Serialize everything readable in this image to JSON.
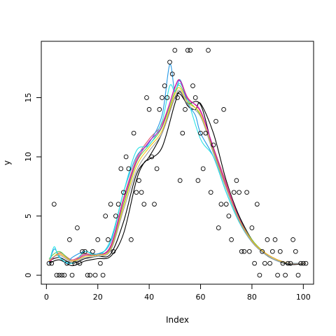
{
  "chart_data": {
    "type": "scatter",
    "title": "",
    "xlabel": "Index",
    "ylabel": "y",
    "xlim": [
      -2,
      104
    ],
    "ylim": [
      -0.76,
      19.76
    ],
    "x_ticks": [
      0,
      20,
      40,
      60,
      80,
      100
    ],
    "y_ticks": [
      0,
      5,
      10,
      15
    ],
    "grid": false,
    "points": [
      [
        1,
        1
      ],
      [
        2,
        1
      ],
      [
        3,
        6
      ],
      [
        4,
        0
      ],
      [
        5,
        0
      ],
      [
        6,
        0
      ],
      [
        7,
        0
      ],
      [
        8,
        1
      ],
      [
        9,
        3
      ],
      [
        10,
        0
      ],
      [
        11,
        1
      ],
      [
        12,
        4
      ],
      [
        13,
        1
      ],
      [
        14,
        2
      ],
      [
        15,
        2
      ],
      [
        16,
        0
      ],
      [
        17,
        0
      ],
      [
        18,
        2
      ],
      [
        19,
        0
      ],
      [
        20,
        3
      ],
      [
        21,
        1
      ],
      [
        22,
        0
      ],
      [
        23,
        5
      ],
      [
        24,
        3
      ],
      [
        25,
        6
      ],
      [
        26,
        2
      ],
      [
        27,
        5
      ],
      [
        28,
        6
      ],
      [
        29,
        9
      ],
      [
        30,
        7
      ],
      [
        31,
        10
      ],
      [
        32,
        9
      ],
      [
        33,
        3
      ],
      [
        34,
        12
      ],
      [
        35,
        7
      ],
      [
        36,
        8
      ],
      [
        37,
        7
      ],
      [
        38,
        6
      ],
      [
        39,
        15
      ],
      [
        40,
        14
      ],
      [
        41,
        10
      ],
      [
        42,
        6
      ],
      [
        43,
        9
      ],
      [
        44,
        14
      ],
      [
        45,
        15
      ],
      [
        46,
        16
      ],
      [
        47,
        15
      ],
      [
        48,
        18
      ],
      [
        49,
        17
      ],
      [
        50,
        19
      ],
      [
        51,
        15
      ],
      [
        52,
        8
      ],
      [
        53,
        12
      ],
      [
        54,
        14
      ],
      [
        55,
        19
      ],
      [
        56,
        19
      ],
      [
        57,
        16
      ],
      [
        58,
        15
      ],
      [
        59,
        8
      ],
      [
        60,
        12
      ],
      [
        61,
        9
      ],
      [
        62,
        12
      ],
      [
        63,
        19
      ],
      [
        64,
        7
      ],
      [
        65,
        11
      ],
      [
        66,
        13
      ],
      [
        67,
        4
      ],
      [
        68,
        6
      ],
      [
        69,
        14
      ],
      [
        70,
        6
      ],
      [
        71,
        5
      ],
      [
        72,
        3
      ],
      [
        73,
        7
      ],
      [
        74,
        8
      ],
      [
        75,
        7
      ],
      [
        76,
        2
      ],
      [
        77,
        2
      ],
      [
        78,
        7
      ],
      [
        79,
        2
      ],
      [
        80,
        4
      ],
      [
        81,
        1
      ],
      [
        82,
        6
      ],
      [
        83,
        0
      ],
      [
        84,
        2
      ],
      [
        85,
        1
      ],
      [
        86,
        3
      ],
      [
        87,
        1
      ],
      [
        88,
        2
      ],
      [
        89,
        3
      ],
      [
        90,
        0
      ],
      [
        91,
        2
      ],
      [
        92,
        1
      ],
      [
        93,
        0
      ],
      [
        94,
        1
      ],
      [
        95,
        1
      ],
      [
        96,
        3
      ],
      [
        97,
        2
      ],
      [
        98,
        0
      ],
      [
        99,
        1
      ],
      [
        100,
        1
      ],
      [
        101,
        1
      ]
    ],
    "series": [
      {
        "color": "#000000",
        "x": [
          1,
          5,
          10,
          15,
          20,
          25,
          30,
          35,
          40,
          45,
          50,
          52,
          55,
          60,
          65,
          70,
          75,
          80,
          85,
          90,
          95,
          101
        ],
        "y": [
          1.2,
          1.5,
          1.0,
          1.4,
          1.6,
          1.8,
          4.5,
          8.5,
          10.0,
          12.0,
          15.0,
          15.3,
          14.5,
          14.4,
          10.5,
          7.5,
          5.0,
          3.0,
          1.8,
          1.2,
          1.0,
          1.0
        ]
      },
      {
        "color": "#000000",
        "x": [
          1,
          5,
          10,
          15,
          20,
          25,
          30,
          35,
          38,
          40,
          45,
          50,
          52,
          55,
          58,
          60,
          65,
          70,
          75,
          80,
          85,
          90,
          95,
          101
        ],
        "y": [
          1.0,
          1.3,
          0.8,
          1.2,
          1.4,
          1.6,
          3.5,
          8.0,
          9.5,
          9.8,
          10.8,
          14.5,
          15.5,
          14.3,
          14.0,
          14.5,
          12.0,
          8.0,
          5.0,
          3.0,
          1.8,
          1.2,
          0.9,
          1.0
        ]
      },
      {
        "color": "#DF536B",
        "x": [
          1,
          5,
          10,
          15,
          20,
          25,
          30,
          35,
          40,
          45,
          50,
          52,
          55,
          60,
          65,
          70,
          75,
          80,
          85,
          90,
          95,
          101
        ],
        "y": [
          1.0,
          1.9,
          1.3,
          1.8,
          1.7,
          2.5,
          6.5,
          9.8,
          11.5,
          12.8,
          15.8,
          16.5,
          15.0,
          13.8,
          10.8,
          7.8,
          4.8,
          3.0,
          1.9,
          1.3,
          1.0,
          1.0
        ]
      },
      {
        "color": "#61D04F",
        "x": [
          1,
          5,
          10,
          15,
          20,
          25,
          30,
          35,
          40,
          45,
          50,
          52,
          55,
          60,
          65,
          70,
          75,
          80,
          85,
          90,
          95,
          101
        ],
        "y": [
          1.4,
          2.0,
          1.2,
          1.7,
          1.8,
          2.3,
          6.0,
          9.5,
          11.0,
          12.5,
          15.5,
          16.0,
          14.8,
          13.5,
          10.5,
          7.5,
          4.8,
          3.0,
          1.9,
          1.3,
          1.0,
          1.0
        ]
      },
      {
        "color": "#2297E6",
        "x": [
          1,
          3,
          5,
          8,
          10,
          15,
          20,
          25,
          30,
          35,
          40,
          45,
          48,
          50,
          52,
          55,
          58,
          60,
          65,
          70,
          75,
          80,
          85,
          90,
          95,
          101
        ],
        "y": [
          1.0,
          2.2,
          1.6,
          1.0,
          1.5,
          2.0,
          1.8,
          2.8,
          7.0,
          10.0,
          11.2,
          13.5,
          17.8,
          15.5,
          16.5,
          14.5,
          13.5,
          12.0,
          10.0,
          7.0,
          4.5,
          2.8,
          1.8,
          1.2,
          1.0,
          1.0
        ]
      },
      {
        "color": "#28E2E5",
        "x": [
          1,
          3,
          5,
          10,
          15,
          20,
          25,
          30,
          35,
          40,
          45,
          48,
          50,
          52,
          55,
          60,
          65,
          70,
          75,
          80,
          85,
          90,
          95,
          101
        ],
        "y": [
          1.0,
          2.4,
          1.5,
          1.0,
          2.0,
          1.6,
          3.0,
          7.0,
          10.5,
          11.0,
          13.0,
          16.0,
          15.5,
          16.2,
          14.8,
          11.5,
          10.0,
          7.0,
          4.5,
          2.8,
          1.8,
          1.2,
          1.0,
          1.0
        ]
      },
      {
        "color": "#CD0BBC",
        "x": [
          1,
          5,
          10,
          15,
          20,
          25,
          30,
          35,
          40,
          45,
          50,
          52,
          55,
          60,
          65,
          70,
          75,
          80,
          85,
          90,
          95,
          101
        ],
        "y": [
          1.1,
          1.8,
          1.2,
          1.7,
          1.7,
          2.4,
          6.3,
          9.6,
          11.3,
          12.6,
          15.9,
          16.4,
          14.9,
          13.9,
          10.7,
          7.6,
          4.8,
          2.9,
          1.9,
          1.3,
          1.0,
          1.0
        ]
      },
      {
        "color": "#F5C710",
        "x": [
          1,
          5,
          10,
          15,
          20,
          25,
          30,
          35,
          40,
          45,
          50,
          52,
          55,
          60,
          65,
          70,
          75,
          80,
          85,
          90,
          95,
          101
        ],
        "y": [
          1.2,
          1.8,
          1.2,
          1.6,
          1.7,
          2.2,
          5.8,
          9.2,
          10.8,
          12.2,
          15.3,
          15.8,
          14.6,
          13.6,
          10.4,
          7.4,
          4.7,
          2.9,
          1.9,
          1.3,
          1.0,
          1.0
        ]
      },
      {
        "color": "#9E9E9E",
        "x": [
          1,
          5,
          10,
          15,
          20,
          25,
          30,
          35,
          40,
          45,
          50,
          52,
          55,
          60,
          65,
          70,
          75,
          80,
          85,
          90,
          95,
          101
        ],
        "y": [
          1.3,
          1.7,
          1.1,
          1.5,
          1.6,
          2.1,
          5.5,
          8.8,
          10.5,
          12.0,
          15.0,
          15.6,
          14.4,
          13.4,
          10.3,
          7.3,
          4.6,
          2.8,
          1.8,
          1.2,
          1.0,
          1.0
        ]
      }
    ]
  }
}
